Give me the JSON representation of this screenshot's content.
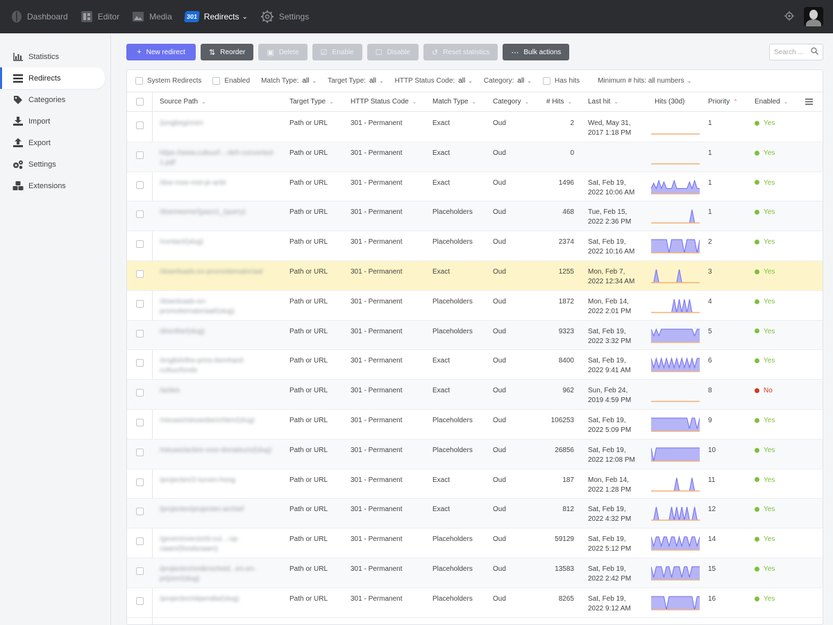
{
  "nav": [
    {
      "label": "Dashboard",
      "icon": "logo-icon"
    },
    {
      "label": "Editor",
      "icon": "editor-icon"
    },
    {
      "label": "Media",
      "icon": "media-icon"
    },
    {
      "label": "Redirects",
      "icon": "301-badge",
      "badge": "301",
      "active": true
    },
    {
      "label": "Settings",
      "icon": "settings-gear-icon"
    }
  ],
  "sidebar": [
    {
      "label": "Statistics",
      "icon": "chart-icon"
    },
    {
      "label": "Redirects",
      "icon": "list-icon",
      "active": true
    },
    {
      "label": "Categories",
      "icon": "tag-icon"
    },
    {
      "label": "Import",
      "icon": "download-icon"
    },
    {
      "label": "Export",
      "icon": "upload-icon"
    },
    {
      "label": "Settings",
      "icon": "gears-icon"
    },
    {
      "label": "Extensions",
      "icon": "cubes-icon"
    }
  ],
  "toolbar": {
    "new": "New redirect",
    "reorder": "Reorder",
    "delete": "Delete",
    "enable": "Enable",
    "disable": "Disable",
    "reset": "Reset statistics",
    "bulk": "Bulk actions"
  },
  "search": {
    "placeholder": "Search ..."
  },
  "filters": {
    "system": "System Redirects",
    "enabled": "Enabled",
    "match_label": "Match Type:",
    "match_value": "all",
    "target_label": "Target Type:",
    "target_value": "all",
    "status_label": "HTTP Status Code:",
    "status_value": "all",
    "category_label": "Category:",
    "category_value": "all",
    "hashits": "Has hits",
    "minhits": "Minimum # hits: all numbers"
  },
  "columns": {
    "source": "Source Path",
    "target": "Target Type",
    "status": "HTTP Status Code",
    "match": "Match Type",
    "category": "Category",
    "hits": "# Hits",
    "lasthit": "Last hit",
    "hits30": "Hits (30d)",
    "priority": "Priority",
    "enabled": "Enabled"
  },
  "colors": {
    "accent": "#6b72f0",
    "yes": "#7fbf3f",
    "no": "#d13b24",
    "spark_blue": "#a9a8f5",
    "spark_orange": "#f0b07a"
  },
  "rows": [
    {
      "source": "/jongbeginnen",
      "target": "Path or URL",
      "status": "301 - Permanent",
      "match": "Exact",
      "category": "Oud",
      "hits": "2",
      "last1": "Wed, May 31,",
      "last2": "2017 1:18 PM",
      "priority": "1",
      "enabled": "Yes",
      "spark": [
        0,
        0,
        0,
        0,
        0,
        0,
        0,
        0,
        0,
        0,
        0,
        0,
        0,
        0,
        0,
        0,
        0,
        0,
        0,
        0
      ]
    },
    {
      "source": "https://www.cultuurf...-deh-converted-1.pdf",
      "target": "Path or URL",
      "status": "301 - Permanent",
      "match": "Exact",
      "category": "Oud",
      "hits": "0",
      "last1": "",
      "last2": "",
      "priority": "1",
      "enabled": "Yes",
      "spark": [
        0,
        0,
        0,
        0,
        0,
        0,
        0,
        0,
        0,
        0,
        0,
        0,
        0,
        0,
        0,
        0,
        0,
        0,
        0,
        0
      ]
    },
    {
      "source": "/doe-mee-met-je-anbi",
      "target": "Path or URL",
      "status": "301 - Permanent",
      "match": "Exact",
      "category": "Oud",
      "hits": "1496",
      "last1": "Sat, Feb 19,",
      "last2": "2022 10:06 AM",
      "priority": "1",
      "enabled": "Yes",
      "spark": [
        0.4,
        0.8,
        0.4,
        1,
        0.4,
        0.9,
        0.4,
        0.4,
        0.4,
        1,
        0.4,
        0.4,
        0.4,
        0.4,
        0.4,
        0.9,
        0.4,
        1,
        0.4,
        0.4
      ]
    },
    {
      "source": "/doemeeme/(pazo1_(query)",
      "target": "Path or URL",
      "status": "301 - Permanent",
      "match": "Placeholders",
      "category": "Oud",
      "hits": "468",
      "last1": "Tue, Feb 15,",
      "last2": "2022 2:36 PM",
      "priority": "1",
      "enabled": "Yes",
      "spark": [
        0,
        0,
        0,
        0,
        0,
        0,
        0,
        0,
        0,
        0,
        0,
        0,
        0,
        0,
        0,
        0,
        1,
        0,
        0,
        0
      ]
    },
    {
      "source": "/contact/(slug)",
      "target": "Path or URL",
      "status": "301 - Permanent",
      "match": "Placeholders",
      "category": "Oud",
      "hits": "2374",
      "last1": "Sat, Feb 19,",
      "last2": "2022 10:16 AM",
      "priority": "2",
      "enabled": "Yes",
      "spark": [
        1,
        1,
        1,
        1,
        1,
        1,
        1,
        0,
        1,
        1,
        1,
        1,
        1,
        0,
        1,
        1,
        1,
        1,
        0,
        1
      ]
    },
    {
      "source": "/downloads-en-promotiemateriaal",
      "target": "Path or URL",
      "status": "301 - Permanent",
      "match": "Exact",
      "category": "Oud",
      "hits": "1255",
      "last1": "Mon, Feb 7,",
      "last2": "2022 12:34 AM",
      "priority": "3",
      "enabled": "Yes",
      "spark": [
        0,
        0,
        1,
        0,
        0,
        0,
        0,
        0,
        0,
        0,
        0,
        1,
        0,
        0,
        0,
        0,
        0,
        0,
        0,
        0
      ]
    },
    {
      "source": "/downloads-en-promotiemateriaal/(slug)",
      "target": "Path or URL",
      "status": "301 - Permanent",
      "match": "Placeholders",
      "category": "Oud",
      "hits": "1872",
      "last1": "Mon, Feb 14,",
      "last2": "2022 2:01 PM",
      "priority": "4",
      "enabled": "Yes",
      "spark": [
        0,
        0,
        0,
        0,
        0,
        0,
        0,
        0,
        0,
        1,
        0,
        1,
        0,
        1,
        0,
        1,
        0,
        0,
        0,
        0
      ]
    },
    {
      "source": "/drenthe/(slug)",
      "target": "Path or URL",
      "status": "301 - Permanent",
      "match": "Placeholders",
      "category": "Oud",
      "hits": "9323",
      "last1": "Sat, Feb 19,",
      "last2": "2022 3:32 PM",
      "priority": "5",
      "enabled": "Yes",
      "spark": [
        1,
        0.5,
        1,
        0.5,
        1,
        1,
        1,
        1,
        1,
        1,
        1,
        1,
        1,
        1,
        1,
        1,
        1,
        0.5,
        1,
        1
      ]
    },
    {
      "source": "/english/the-prins-bernhard-cultuurfonds",
      "target": "Path or URL",
      "status": "301 - Permanent",
      "match": "Exact",
      "category": "Oud",
      "hits": "8400",
      "last1": "Sat, Feb 19,",
      "last2": "2022 9:41 AM",
      "priority": "6",
      "enabled": "Yes",
      "spark": [
        1,
        0.3,
        1,
        0.3,
        1,
        0.3,
        1,
        0.3,
        1,
        0.3,
        1,
        0.3,
        1,
        0.3,
        1,
        0.3,
        1,
        0.3,
        1,
        1
      ]
    },
    {
      "source": "/acties",
      "target": "Path or URL",
      "status": "301 - Permanent",
      "match": "Exact",
      "category": "Oud",
      "hits": "962",
      "last1": "Sun, Feb 24,",
      "last2": "2019 4:59 PM",
      "priority": "8",
      "enabled": "No",
      "spark": [
        0,
        0,
        0,
        0,
        0,
        0,
        0,
        0,
        0,
        0,
        0,
        0,
        0,
        0,
        0,
        0,
        0,
        0,
        0,
        0
      ]
    },
    {
      "source": "/nieuws/nieuwsberichten/(slug)",
      "target": "Path or URL",
      "status": "301 - Permanent",
      "match": "Placeholders",
      "category": "Oud",
      "hits": "106253",
      "last1": "Sat, Feb 19,",
      "last2": "2022 5:09 PM",
      "priority": "9",
      "enabled": "Yes",
      "spark": [
        1,
        1,
        1,
        1,
        1,
        1,
        1,
        1,
        1,
        1,
        1,
        1,
        1,
        1,
        1,
        0.2,
        1,
        1,
        0.2,
        1
      ]
    },
    {
      "source": "/nieuws/acties-voor-donateurs/(slug)",
      "target": "Path or URL",
      "status": "301 - Permanent",
      "match": "Placeholders",
      "category": "Oud",
      "hits": "26856",
      "last1": "Sat, Feb 19,",
      "last2": "2022 12:08 PM",
      "priority": "10",
      "enabled": "Yes",
      "spark": [
        1,
        0,
        1,
        1,
        1,
        1,
        1,
        1,
        1,
        1,
        1,
        1,
        1,
        1,
        1,
        1,
        1,
        1,
        1,
        1
      ]
    },
    {
      "source": "/projecten/2-turven-hoog",
      "target": "Path or URL",
      "status": "301 - Permanent",
      "match": "Exact",
      "category": "Oud",
      "hits": "187",
      "last1": "Mon, Feb 14,",
      "last2": "2022 1:28 PM",
      "priority": "11",
      "enabled": "Yes",
      "spark": [
        0,
        0,
        0,
        0,
        0,
        0,
        0,
        0,
        0,
        0,
        1,
        0,
        0,
        0,
        0,
        0,
        1,
        0,
        0,
        0
      ]
    },
    {
      "source": "/projecten/projecten-archief",
      "target": "Path or URL",
      "status": "301 - Permanent",
      "match": "Exact",
      "category": "Oud",
      "hits": "812",
      "last1": "Sat, Feb 19,",
      "last2": "2022 4:32 PM",
      "priority": "12",
      "enabled": "Yes",
      "spark": [
        0,
        0,
        1,
        0,
        0,
        0,
        0,
        0,
        1,
        0,
        1,
        0,
        1,
        0,
        1,
        0,
        0,
        1,
        0,
        0
      ]
    },
    {
      "source": "/geven/overzicht-cul...-op-naam/(fondsnaam)",
      "target": "Path or URL",
      "status": "301 - Permanent",
      "match": "Placeholders",
      "category": "Oud",
      "hits": "59129",
      "last1": "Sat, Feb 19,",
      "last2": "2022 5:12 PM",
      "priority": "14",
      "enabled": "Yes",
      "spark": [
        1,
        0.3,
        1,
        1,
        0.3,
        1,
        1,
        0.3,
        1,
        1,
        0.3,
        1,
        0.3,
        1,
        1,
        0.3,
        1,
        1,
        0.3,
        1
      ]
    },
    {
      "source": "/projecten/onderscheid...en-en-prijzen/(slug)",
      "target": "Path or URL",
      "status": "301 - Permanent",
      "match": "Placeholders",
      "category": "Oud",
      "hits": "13583",
      "last1": "Sat, Feb 19,",
      "last2": "2022 2:42 PM",
      "priority": "15",
      "enabled": "Yes",
      "spark": [
        1,
        0.2,
        1,
        1,
        1,
        0.2,
        1,
        1,
        0.2,
        1,
        1,
        1,
        0.2,
        1,
        1,
        0.2,
        1,
        1,
        1,
        1
      ]
    },
    {
      "source": "/projecten/stipendia/(slug)",
      "target": "Path or URL",
      "status": "301 - Permanent",
      "match": "Placeholders",
      "category": "Oud",
      "hits": "8265",
      "last1": "Sat, Feb 19,",
      "last2": "2022 9:12 AM",
      "priority": "16",
      "enabled": "Yes",
      "spark": [
        1,
        1,
        1,
        1,
        1,
        1,
        0,
        1,
        1,
        1,
        1,
        1,
        1,
        1,
        1,
        1,
        1,
        0,
        1,
        1
      ]
    }
  ]
}
